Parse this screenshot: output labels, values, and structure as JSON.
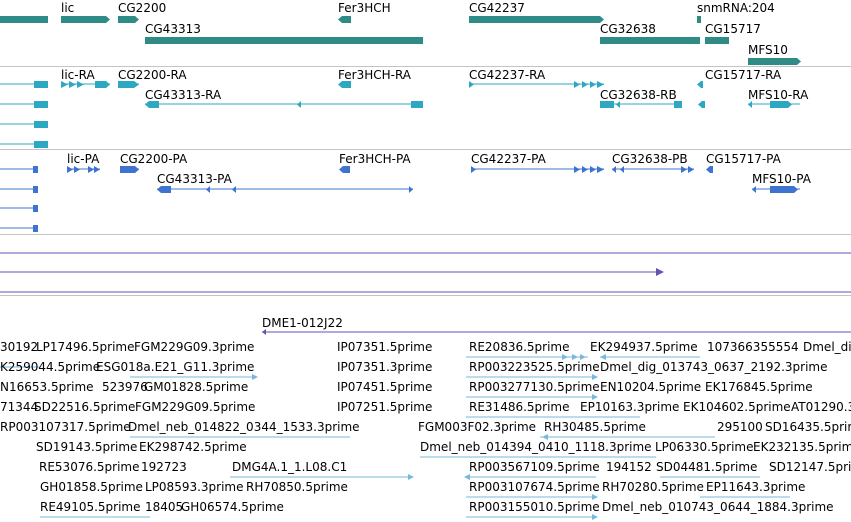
{
  "colors": {
    "gene": "#2e8b86",
    "transcript": "#2ea8c2",
    "protein": "#3e74cf",
    "purple": "#6c4fb4",
    "est": "#78b8de",
    "separator": "#c4c4c4"
  },
  "gene_track": {
    "labels": [
      "lic",
      "CG2200",
      "Fer3HCH",
      "CG42237",
      "snmRNA:204",
      "CG43313",
      "CG32638",
      "CG15717",
      "MFS10"
    ]
  },
  "transcript_track": {
    "labels": [
      "lic-RA",
      "CG2200-RA",
      "Fer3HCH-RA",
      "CG42237-RA",
      "CG15717-RA",
      "CG43313-RA",
      "CG32638-RB",
      "MFS10-RA"
    ]
  },
  "protein_track": {
    "labels": [
      "lic-PA",
      "CG2200-PA",
      "Fer3HCH-PA",
      "CG42237-PA",
      "CG32638-PB",
      "CG15717-PA",
      "CG43313-PA",
      "MFS10-PA"
    ]
  },
  "clone_track": {
    "labels": [
      "DME1-012J22"
    ]
  },
  "est_track": {
    "rows": [
      [
        "30192",
        "LP17496.5prime",
        "FGM229G09.3prime",
        "IP07351.5prime",
        "RE20836.5prime",
        "EK294937.5prime",
        "107366355554",
        "Dmel_dig"
      ],
      [
        "K259044.5prime",
        "ESG018a.E21_G11.3prime",
        "IP07351.3prime",
        "RP003223525.5prime",
        "Dmel_dig_013743_0637_2192.3prime"
      ],
      [
        "N16653.5prime",
        "523976",
        "GM01828.5prime",
        "IP07451.5prime",
        "RP003277130.5prime",
        "EN10204.5prime",
        "EK176845.5prime"
      ],
      [
        "71344",
        "SD22516.5prime",
        "FGM229G09.5prime",
        "IP07251.5prime",
        "RE31486.5prime",
        "EP10163.3prime",
        "EK104602.5prime",
        "AT01290.3"
      ],
      [
        "RP003107317.5prime",
        "Dmel_neb_014822_0344_1533.3prime",
        "FGM003F02.3prime",
        "RH30485.5prime",
        "295100",
        "SD16435.5prime"
      ],
      [
        "SD19143.5prime",
        "EK298742.5prime",
        "Dmel_neb_014394_0410_1118.3prime",
        "LP06330.5prime",
        "EK232135.5prime"
      ],
      [
        "RE53076.5prime",
        "192723",
        "DMG4A.1_1.L08.C1",
        "RP003567109.5prime",
        "194152",
        "SD04481.5prime",
        "SD12147.5prime"
      ],
      [
        "GH01858.5prime",
        "LP08593.3prime",
        "RH70850.5prime",
        "RP003107674.5prime",
        "RH70280.5prime",
        "EP11643.3prime"
      ],
      [
        "RE49105.5prime",
        "18405",
        "GH06574.5prime",
        "RP003155010.5prime",
        "Dmel_neb_010743_0644_1884.3prime"
      ]
    ]
  }
}
